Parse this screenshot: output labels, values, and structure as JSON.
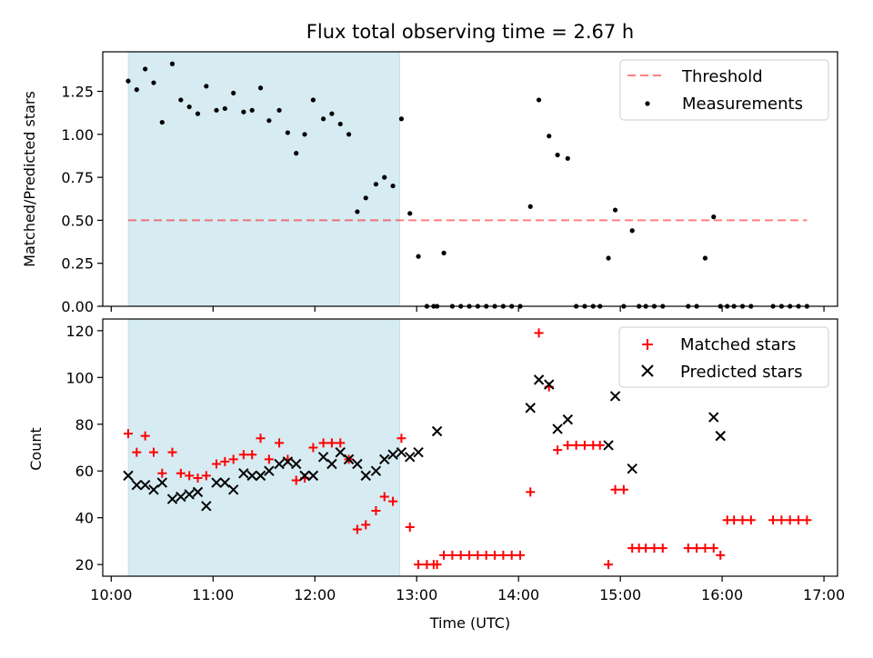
{
  "figure": {
    "title": "Flux total observing time = 2.67 h"
  },
  "colors": {
    "shade": "#add8e6",
    "threshold": "#ff0000",
    "matched": "#ff0000",
    "predicted": "#000000",
    "measurements": "#000000"
  },
  "chart_data": [
    {
      "type": "scatter",
      "ylabel": "Matched/Predicted stars",
      "ylim": [
        0,
        1.48
      ],
      "yticks": [
        "0.00",
        "0.25",
        "0.50",
        "0.75",
        "1.00",
        "1.25"
      ],
      "ytick_values": [
        0,
        0.25,
        0.5,
        0.75,
        1.0,
        1.25
      ],
      "xlim": [
        "09:55",
        "17:08"
      ],
      "shaded_interval": [
        "10:10",
        "12:50"
      ],
      "legend": {
        "position": "top-right",
        "threshold_label": "Threshold",
        "measurements_label": "Measurements"
      },
      "threshold": {
        "name": "Threshold",
        "y": 0.5,
        "x_range": [
          "10:10",
          "16:50"
        ]
      },
      "series": [
        {
          "name": "Measurements",
          "x": [
            "10:10",
            "10:15",
            "10:20",
            "10:25",
            "10:30",
            "10:36",
            "10:41",
            "10:46",
            "10:51",
            "10:56",
            "11:02",
            "11:07",
            "11:12",
            "11:18",
            "11:23",
            "11:28",
            "11:33",
            "11:39",
            "11:44",
            "11:49",
            "11:54",
            "11:59",
            "12:05",
            "12:10",
            "12:15",
            "12:20",
            "12:25",
            "12:30",
            "12:36",
            "12:41",
            "12:46",
            "12:51",
            "12:56",
            "13:01",
            "13:06",
            "13:10",
            "13:12",
            "13:16",
            "13:21",
            "13:26",
            "13:31",
            "13:36",
            "13:41",
            "13:46",
            "13:51",
            "13:56",
            "14:01",
            "14:07",
            "14:12",
            "14:18",
            "14:23",
            "14:29",
            "14:34",
            "14:39",
            "14:44",
            "14:48",
            "14:53",
            "14:57",
            "15:02",
            "15:07",
            "15:11",
            "15:15",
            "15:20",
            "15:25",
            "15:40",
            "15:45",
            "15:50",
            "15:55",
            "15:59",
            "16:03",
            "16:07",
            "16:12",
            "16:17",
            "16:30",
            "16:35",
            "16:40",
            "16:45",
            "16:50"
          ],
          "y": [
            1.31,
            1.26,
            1.38,
            1.3,
            1.07,
            1.41,
            1.2,
            1.16,
            1.12,
            1.28,
            1.14,
            1.15,
            1.24,
            1.13,
            1.14,
            1.27,
            1.08,
            1.14,
            1.01,
            0.89,
            1.0,
            1.2,
            1.09,
            1.12,
            1.06,
            1.0,
            0.55,
            0.63,
            0.71,
            0.75,
            0.7,
            1.09,
            0.54,
            0.29,
            0,
            0,
            0,
            0.31,
            0,
            0,
            0,
            0,
            0,
            0,
            0,
            0,
            0,
            0.58,
            1.2,
            0.99,
            0.88,
            0.86,
            0,
            0,
            0,
            0,
            0.28,
            0.56,
            0,
            0.44,
            0,
            0,
            0,
            0,
            0,
            0,
            0.28,
            0.52,
            0,
            0,
            0,
            0,
            0,
            0,
            0,
            0,
            0,
            0
          ]
        }
      ]
    },
    {
      "type": "scatter",
      "xlabel": "Time (UTC)",
      "ylabel": "Count",
      "ylim": [
        15,
        125
      ],
      "yticks": [
        "20",
        "40",
        "60",
        "80",
        "100",
        "120"
      ],
      "ytick_values": [
        20,
        40,
        60,
        80,
        100,
        120
      ],
      "xlim": [
        "09:55",
        "17:08"
      ],
      "xticks": [
        "10:00",
        "11:00",
        "12:00",
        "13:00",
        "14:00",
        "15:00",
        "16:00",
        "17:00"
      ],
      "shaded_interval": [
        "10:10",
        "12:50"
      ],
      "legend": {
        "position": "top-right",
        "matched_label": "Matched stars",
        "predicted_label": "Predicted stars"
      },
      "series": [
        {
          "name": "Matched stars",
          "marker": "plus",
          "x": [
            "10:10",
            "10:15",
            "10:20",
            "10:25",
            "10:30",
            "10:36",
            "10:41",
            "10:46",
            "10:51",
            "10:56",
            "11:02",
            "11:07",
            "11:12",
            "11:18",
            "11:23",
            "11:28",
            "11:33",
            "11:39",
            "11:44",
            "11:49",
            "11:54",
            "11:59",
            "12:05",
            "12:10",
            "12:15",
            "12:20",
            "12:25",
            "12:30",
            "12:36",
            "12:41",
            "12:46",
            "12:51",
            "12:56",
            "13:01",
            "13:06",
            "13:10",
            "13:12",
            "13:16",
            "13:21",
            "13:26",
            "13:31",
            "13:36",
            "13:41",
            "13:46",
            "13:51",
            "13:56",
            "14:01",
            "14:07",
            "14:12",
            "14:18",
            "14:23",
            "14:29",
            "14:34",
            "14:39",
            "14:44",
            "14:48",
            "14:53",
            "14:57",
            "15:02",
            "15:07",
            "15:11",
            "15:15",
            "15:20",
            "15:25",
            "15:40",
            "15:45",
            "15:50",
            "15:55",
            "15:59",
            "16:03",
            "16:07",
            "16:12",
            "16:17",
            "16:30",
            "16:35",
            "16:40",
            "16:45",
            "16:50"
          ],
          "y": [
            76,
            68,
            75,
            68,
            59,
            68,
            59,
            58,
            57,
            58,
            63,
            64,
            65,
            67,
            67,
            74,
            65,
            72,
            65,
            56,
            57,
            70,
            72,
            72,
            72,
            65,
            35,
            37,
            43,
            49,
            47,
            74,
            36,
            20,
            20,
            20,
            20,
            24,
            24,
            24,
            24,
            24,
            24,
            24,
            24,
            24,
            24,
            51,
            119,
            96,
            69,
            71,
            71,
            71,
            71,
            71,
            20,
            52,
            52,
            27,
            27,
            27,
            27,
            27,
            27,
            27,
            27,
            27,
            24,
            39,
            39,
            39,
            39,
            39,
            39,
            39,
            39,
            39
          ]
        },
        {
          "name": "Predicted stars",
          "marker": "x",
          "x": [
            "10:10",
            "10:15",
            "10:20",
            "10:25",
            "10:30",
            "10:36",
            "10:41",
            "10:46",
            "10:51",
            "10:56",
            "11:02",
            "11:07",
            "11:12",
            "11:18",
            "11:23",
            "11:28",
            "11:33",
            "11:39",
            "11:44",
            "11:49",
            "11:54",
            "11:59",
            "12:05",
            "12:10",
            "12:15",
            "12:20",
            "12:25",
            "12:30",
            "12:36",
            "12:41",
            "12:46",
            "12:51",
            "12:56",
            "13:01",
            "13:12",
            "14:07",
            "14:12",
            "14:18",
            "14:23",
            "14:29",
            "14:53",
            "14:57",
            "15:07",
            "15:55",
            "15:59"
          ],
          "y": [
            58,
            54,
            54,
            52,
            55,
            48,
            49,
            50,
            51,
            45,
            55,
            55,
            52,
            59,
            58,
            58,
            60,
            63,
            64,
            63,
            58,
            58,
            66,
            63,
            68,
            65,
            63,
            58,
            60,
            65,
            67,
            68,
            66,
            68,
            77,
            87,
            99,
            97,
            78,
            82,
            71,
            92,
            61,
            83,
            75
          ]
        }
      ]
    }
  ]
}
